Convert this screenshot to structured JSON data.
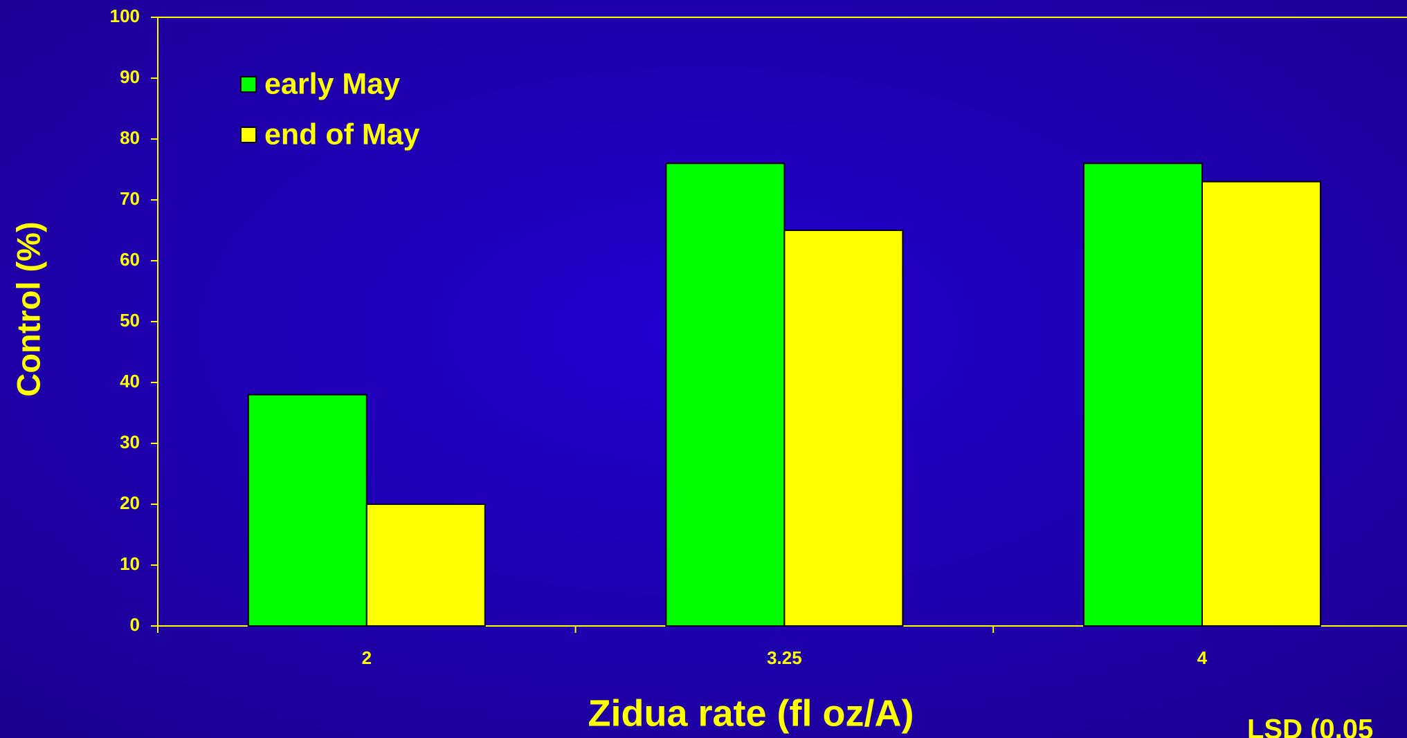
{
  "chart_data": {
    "type": "bar",
    "x_label": "Zidua rate (fl oz/A)",
    "y_label": "Control (%)",
    "annotation": "LSD (0.05",
    "categories": [
      "2",
      "3.25",
      "4"
    ],
    "series": [
      {
        "name": "early May",
        "color": "#00ff00",
        "values": [
          38,
          76,
          76
        ]
      },
      {
        "name": "end of May",
        "color": "#ffff00",
        "values": [
          20,
          65,
          73
        ]
      }
    ],
    "ylim": [
      0,
      100
    ],
    "yticks": [
      0,
      10,
      20,
      30,
      40,
      50,
      60,
      70,
      80,
      90,
      100
    ],
    "legend": "upper left"
  }
}
